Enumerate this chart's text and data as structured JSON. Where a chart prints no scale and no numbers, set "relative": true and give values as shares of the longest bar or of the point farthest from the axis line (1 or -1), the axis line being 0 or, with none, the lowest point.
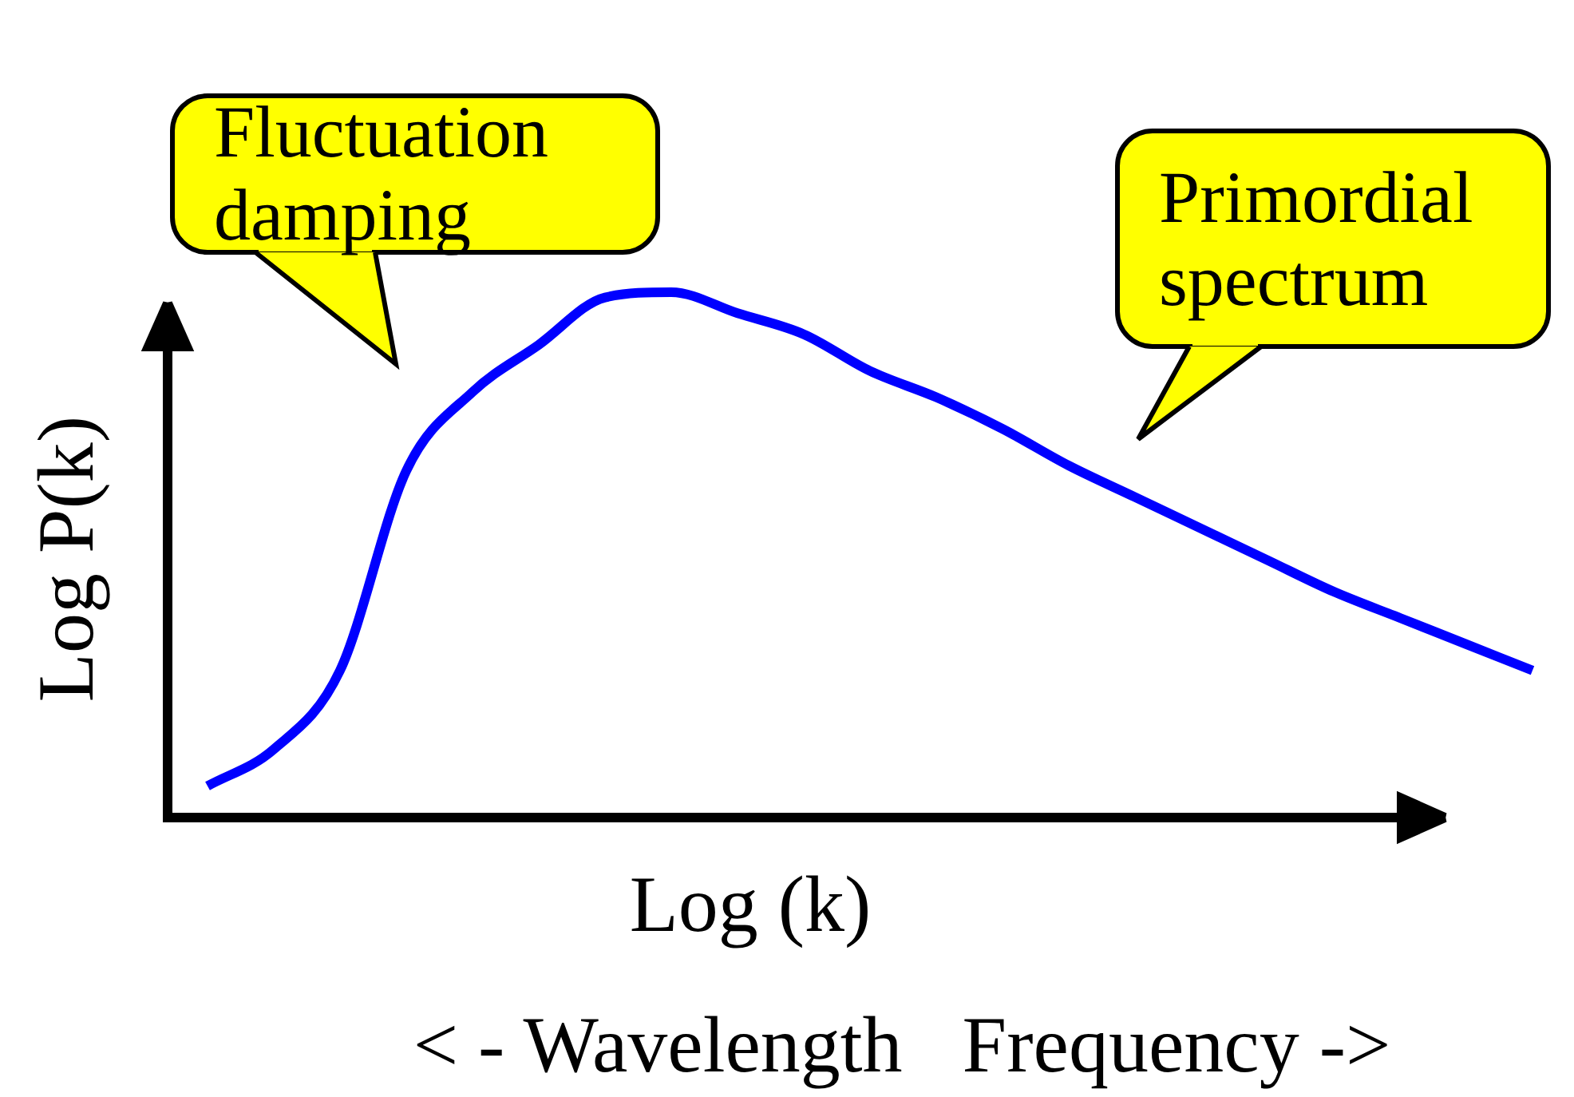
{
  "chart_data": {
    "type": "line",
    "relative": true,
    "xlabel": "Log (k)",
    "ylabel": "Log P(k)",
    "color": "#0000ff",
    "annotations": [
      "Fluctuation damping",
      "Primordial spectrum",
      "< - Wavelength   Frequency ->"
    ],
    "categories": [
      null,
      null,
      null,
      null,
      null,
      null,
      null,
      null,
      null,
      null,
      null,
      null,
      null,
      null,
      null,
      null,
      null,
      null,
      null,
      null,
      null
    ],
    "values": [
      0.06,
      0.13,
      0.28,
      0.66,
      0.81,
      0.9,
      0.99,
      1.0,
      0.96,
      0.92,
      0.85,
      0.8,
      0.74,
      0.67,
      0.61,
      0.55,
      0.49,
      0.43,
      0.38,
      0.33,
      0.28
    ]
  }
}
